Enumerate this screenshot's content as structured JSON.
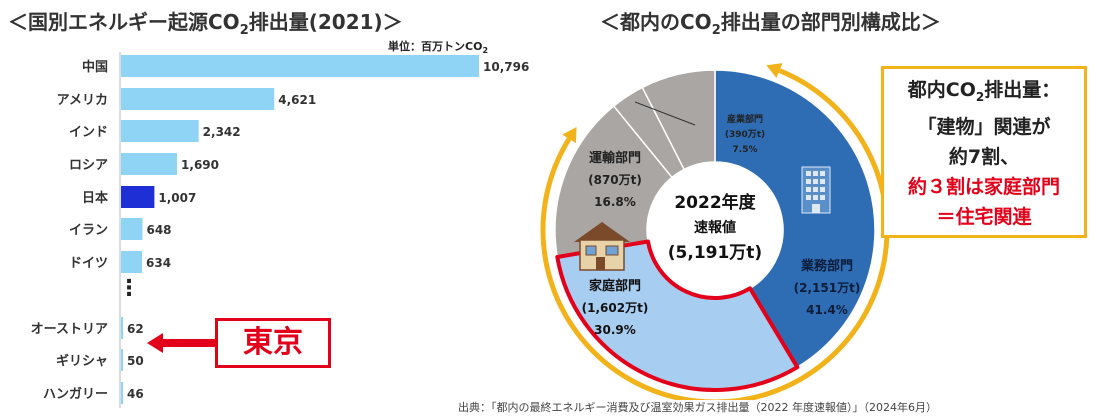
{
  "left_title": "＜国別エネルギー起源CO",
  "left_title_sub": "2",
  "left_title_tail": "排出量(2021)＞",
  "unit_label": "単位：百万トンCO",
  "unit_sub": "2",
  "ellipsis": "⋮",
  "tokyo_label": "東京",
  "right_title": "＜都内のCO",
  "right_title_sub": "2",
  "right_title_tail": "排出量の部門別構成比＞",
  "center": {
    "line1": "2022年度",
    "line2": "速報値",
    "line3": "(5,191万t)"
  },
  "callout": {
    "line1": "都内CO",
    "line1_sub": "2",
    "line1_tail": "排出量：",
    "line2": "「建物」関連が",
    "line3": "約7割、",
    "line4": "約３割は家庭部門",
    "line5": "＝住宅関連"
  },
  "source": "出典：「都内の最終エネルギー消費及び温室効果ガス排出量（2022 年度速報値）」（2024年6月）",
  "colors": {
    "bar": "#8fd4f5",
    "japan": "#1f2fd6",
    "business": "#2e6db4",
    "home": "#a7cdf0",
    "gray": "#a9a6a3",
    "ring": "#f2b21a",
    "red": "#e2001a"
  },
  "chart_data": [
    {
      "type": "bar",
      "orientation": "horizontal",
      "categories": [
        "中国",
        "アメリカ",
        "インド",
        "ロシア",
        "日本",
        "イラン",
        "ドイツ",
        "オーストリア",
        "ギリシャ",
        "ハンガリー"
      ],
      "values": [
        10796,
        4621,
        2342,
        1690,
        1007,
        648,
        634,
        62,
        50,
        46
      ],
      "value_labels": [
        "10,796",
        "4,621",
        "2,342",
        "1,690",
        "1,007",
        "648",
        "634",
        "62",
        "50",
        "46"
      ],
      "highlight": "日本",
      "title": "＜国別エネルギー起源CO2排出量(2021)＞",
      "unit": "単位：百万トンCO2",
      "xlim": [
        0,
        10796
      ]
    },
    {
      "type": "pie",
      "donut": true,
      "title": "＜都内のCO2排出量の部門別構成比＞",
      "slices": [
        {
          "name": "業務部門",
          "amount": "(2,151万t)",
          "percent_label": "41.4%",
          "value": 41.4
        },
        {
          "name": "家庭部門",
          "amount": "(1,602万t)",
          "percent_label": "30.9%",
          "value": 30.9
        },
        {
          "name": "運輸部門",
          "amount": "(870万t)",
          "percent_label": "16.8%",
          "value": 16.8
        },
        {
          "name": "",
          "amount": "",
          "percent_label": "",
          "value": 3.4
        },
        {
          "name": "産業部門",
          "amount": "(390万t)",
          "percent_label": "7.5%",
          "value": 7.5
        }
      ]
    }
  ]
}
